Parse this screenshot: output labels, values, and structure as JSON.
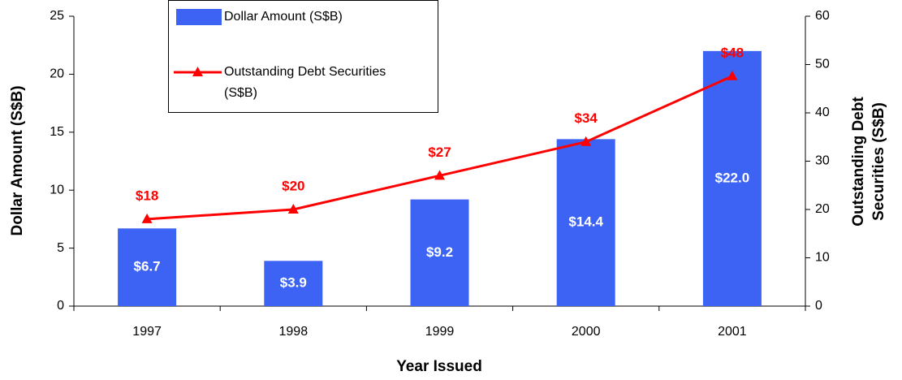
{
  "chart_data": {
    "type": "bar-line",
    "x_label": "Year Issued",
    "y_label": "Dollar Amount (S$B)",
    "y2_label": "Outstanding Debt Securities (S$B)",
    "categories": [
      "1997",
      "1998",
      "1999",
      "2000",
      "2001"
    ],
    "series": [
      {
        "name": "Dollar Amount (S$B)",
        "type": "bar",
        "color": "#3d63f5",
        "values": [
          6.7,
          3.9,
          9.2,
          14.4,
          22.0
        ],
        "value_labels": [
          "$6.7",
          "$3.9",
          "$9.2",
          "$14.4",
          "$22.0"
        ]
      },
      {
        "name": "Outstanding Debt Securities (S$B)",
        "type": "line",
        "axis": "y2",
        "color": "#ff0000",
        "values": [
          18,
          20,
          27,
          34,
          47.6
        ],
        "value_labels": [
          "$18",
          "$20",
          "$27",
          "$34",
          "$48"
        ]
      }
    ],
    "ylim": [
      0,
      25
    ],
    "yticks": [
      0,
      5,
      10,
      15,
      20,
      25
    ],
    "y2lim": [
      0,
      60
    ],
    "y2ticks": [
      0,
      10,
      20,
      30,
      40,
      50,
      60
    ]
  }
}
